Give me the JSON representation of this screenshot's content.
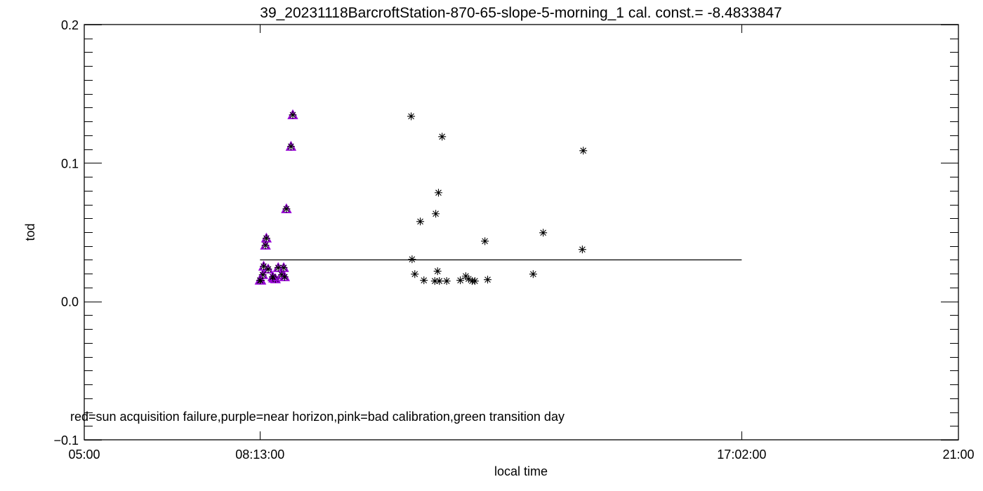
{
  "chart_data": {
    "type": "scatter",
    "title": "39_20231118BarcroftStation-870-65-slope-5-morning_1 cal. const.= -8.4833847",
    "xlabel": "local time",
    "ylabel": "tod",
    "xlim": [
      "05:00",
      "21:00"
    ],
    "ylim": [
      -0.1,
      0.2
    ],
    "x_tick_labels": [
      "05:00",
      "08:13:00",
      "17:02:00",
      "21:00"
    ],
    "y_tick_labels": [
      "-0.1",
      "0.0",
      "0.1",
      "0.2"
    ],
    "y_minor_step": 0.01,
    "grid": false,
    "annotation": "red=sun acquisition failure,purple=near horizon,pink=bad calibration,green transition day",
    "colors": {
      "axes": "#000000",
      "near_horizon": "#9400d3",
      "marker": "#000000"
    },
    "reference_line": {
      "x": [
        "08:13",
        "17:02"
      ],
      "y": 0.0304
    },
    "series": [
      {
        "flag": "purple",
        "points": [
          [
            "08:49",
            0.1347
          ],
          [
            "08:47",
            0.1119
          ],
          [
            "08:42",
            0.0668
          ],
          [
            "08:20",
            0.0456
          ],
          [
            "08:19",
            0.0405
          ],
          [
            "08:17",
            0.0253
          ],
          [
            "08:22",
            0.0233
          ],
          [
            "08:16",
            0.0192
          ],
          [
            "08:14",
            0.0152
          ],
          [
            "08:13",
            0.0152
          ],
          [
            "08:28",
            0.0167
          ],
          [
            "08:30",
            0.0162
          ],
          [
            "08:33",
            0.0243
          ],
          [
            "08:39",
            0.0243
          ],
          [
            "08:37",
            0.0192
          ],
          [
            "08:40",
            0.0177
          ],
          [
            "08:27",
            0.0177
          ]
        ]
      },
      {
        "flag": "none",
        "points": [
          [
            "10:59",
            0.1337
          ],
          [
            "11:33",
            0.119
          ],
          [
            "14:08",
            0.1089
          ],
          [
            "11:29",
            0.0785
          ],
          [
            "11:26",
            0.0633
          ],
          [
            "11:09",
            0.0577
          ],
          [
            "12:20",
            0.0435
          ],
          [
            "13:24",
            0.0496
          ],
          [
            "14:07",
            0.0375
          ],
          [
            "11:00",
            0.0304
          ],
          [
            "11:03",
            0.0197
          ],
          [
            "11:13",
            0.0152
          ],
          [
            "11:25",
            0.0147
          ],
          [
            "11:28",
            0.0218
          ],
          [
            "11:30",
            0.0147
          ],
          [
            "11:38",
            0.0147
          ],
          [
            "11:53",
            0.0152
          ],
          [
            "11:59",
            0.0182
          ],
          [
            "12:02",
            0.0162
          ],
          [
            "12:06",
            0.0147
          ],
          [
            "12:09",
            0.0147
          ],
          [
            "12:23",
            0.0157
          ],
          [
            "13:13",
            0.0197
          ]
        ]
      }
    ]
  }
}
